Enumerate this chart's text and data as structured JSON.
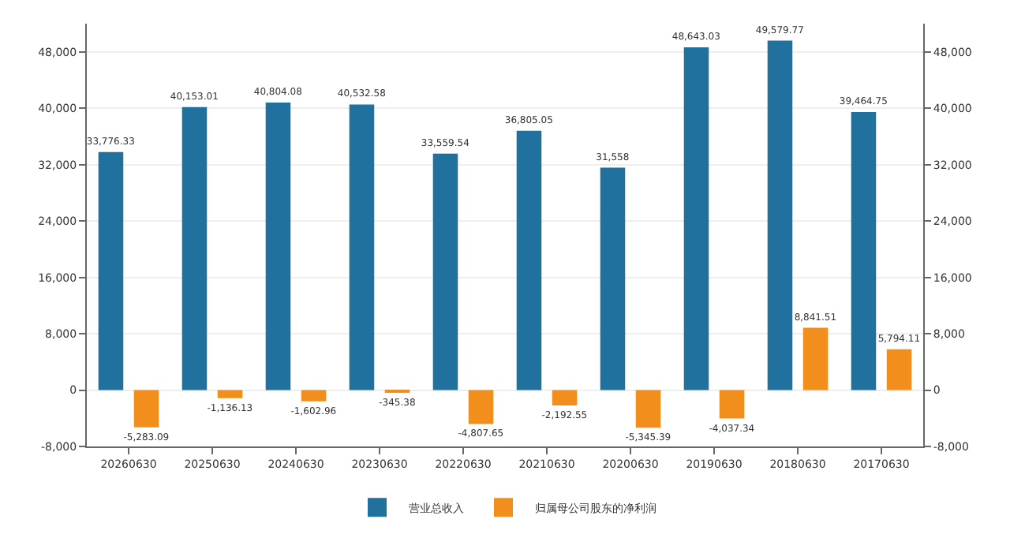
{
  "chart_data": {
    "type": "bar",
    "categories": [
      "20260630",
      "20250630",
      "20240630",
      "20230630",
      "20220630",
      "20210630",
      "20200630",
      "20190630",
      "20180630",
      "20170630"
    ],
    "series": [
      {
        "name": "营业总收入",
        "color": "#21719f",
        "values": [
          33776.33,
          40153.01,
          40804.08,
          40532.58,
          33559.54,
          36805.05,
          31558,
          48643.03,
          49579.77,
          39464.75
        ],
        "value_labels": [
          "33,776.33",
          "40,153.01",
          "40,804.08",
          "40,532.58",
          "33,559.54",
          "36,805.05",
          "31,558",
          "48,643.03",
          "49,579.77",
          "39,464.75"
        ]
      },
      {
        "name": "归属母公司股东的净利润",
        "color": "#f28e1c",
        "values": [
          -5283.09,
          -1136.13,
          -1602.96,
          -345.38,
          -4807.65,
          -2192.55,
          -5345.39,
          -4037.34,
          8841.51,
          5794.11
        ],
        "value_labels": [
          "-5,283.09",
          "-1,136.13",
          "-1,602.96",
          "-345.38",
          "-4,807.65",
          "-2,192.55",
          "-5,345.39",
          "-4,037.34",
          "8,841.51",
          "5,794.11"
        ]
      }
    ],
    "ylim": [
      -8000,
      52000
    ],
    "yticks": [
      {
        "value": -8000,
        "label": "-8,000"
      },
      {
        "value": 0,
        "label": "0"
      },
      {
        "value": 8000,
        "label": "8,000"
      },
      {
        "value": 16000,
        "label": "16,000"
      },
      {
        "value": 24000,
        "label": "24,000"
      },
      {
        "value": 32000,
        "label": "32,000"
      },
      {
        "value": 40000,
        "label": "40,000"
      },
      {
        "value": 48000,
        "label": "48,000"
      }
    ],
    "y2lim": [
      -8000,
      52000
    ],
    "y2ticks": [
      {
        "value": -8000,
        "label": "-8,000"
      },
      {
        "value": 0,
        "label": "0"
      },
      {
        "value": 8000,
        "label": "8,000"
      },
      {
        "value": 16000,
        "label": "16,000"
      },
      {
        "value": 24000,
        "label": "24,000"
      },
      {
        "value": 32000,
        "label": "32,000"
      },
      {
        "value": 40000,
        "label": "40,000"
      },
      {
        "value": 48000,
        "label": "48,000"
      }
    ],
    "grid": "y",
    "legend": "bottom"
  }
}
